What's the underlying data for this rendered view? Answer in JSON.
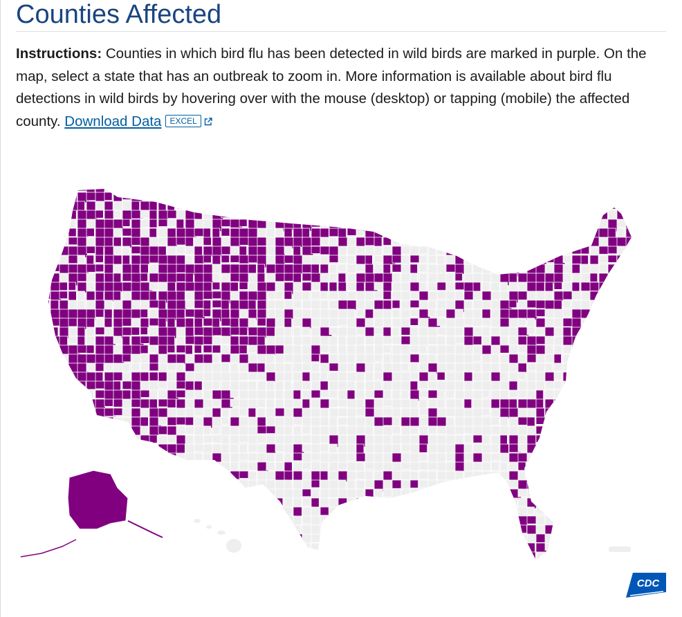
{
  "page": {
    "title": "Counties Affected",
    "instructions_label": "Instructions:",
    "instructions_text": "Counties in which bird flu has been detected in wild birds are marked in purple. On the map, select a state that has an outbreak to zoom in. More information is available about bird flu detections in wild birds by hovering over with the mouse (desktop) or tapping (mobile) the affected county.",
    "download_label": "Download Data",
    "download_badge": "EXCEL"
  },
  "map": {
    "affected_color": "#800080",
    "unaffected_color": "#eeeeee",
    "border_color": "#ffffff"
  },
  "logo": {
    "text": "CDC",
    "color": "#0057b7"
  },
  "icons": {
    "external_link": "external-link-icon"
  }
}
